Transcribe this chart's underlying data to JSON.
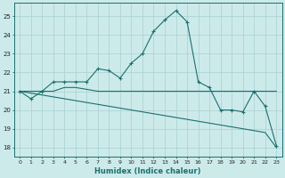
{
  "xlabel": "Humidex (Indice chaleur)",
  "ylabel": "",
  "background_color": "#cdeaea",
  "grid_color": "#add4d4",
  "line_color": "#1a7070",
  "xlim": [
    -0.5,
    23.5
  ],
  "ylim": [
    17.5,
    25.7
  ],
  "yticks": [
    18,
    19,
    20,
    21,
    22,
    23,
    24,
    25
  ],
  "xticks": [
    0,
    1,
    2,
    3,
    4,
    5,
    6,
    7,
    8,
    9,
    10,
    11,
    12,
    13,
    14,
    15,
    16,
    17,
    18,
    19,
    20,
    21,
    22,
    23
  ],
  "xtick_labels": [
    "0",
    "1",
    "2",
    "3",
    "4",
    "5",
    "6",
    "7",
    "8",
    "9",
    "10",
    "11",
    "12",
    "13",
    "14",
    "15",
    "16",
    "17",
    "18",
    "19",
    "20",
    "21",
    "22",
    "23"
  ],
  "series": [
    [
      21.0,
      20.6,
      21.0,
      21.5,
      21.5,
      21.5,
      21.5,
      22.2,
      22.1,
      21.7,
      22.5,
      23.0,
      24.2,
      24.8,
      25.3,
      24.7,
      21.5,
      21.2,
      20.0,
      20.0,
      19.9,
      21.0,
      20.2,
      18.1
    ],
    [
      21.0,
      21.0,
      21.0,
      21.0,
      21.2,
      21.2,
      21.1,
      21.0,
      21.0,
      21.0,
      21.0,
      21.0,
      21.0,
      21.0,
      21.0,
      21.0,
      21.0,
      21.0,
      21.0,
      21.0,
      21.0,
      21.0,
      21.0,
      21.0
    ],
    [
      21.0,
      20.9,
      20.8,
      20.7,
      20.6,
      20.5,
      20.4,
      20.3,
      20.2,
      20.1,
      20.0,
      19.9,
      19.8,
      19.7,
      19.6,
      19.5,
      19.4,
      19.3,
      19.2,
      19.1,
      19.0,
      18.9,
      18.8,
      18.0
    ]
  ],
  "marker_series": 0,
  "tick_fontsize": 4.5,
  "xlabel_fontsize": 6.0,
  "figure_width": 3.2,
  "figure_height": 2.0,
  "dpi": 100
}
